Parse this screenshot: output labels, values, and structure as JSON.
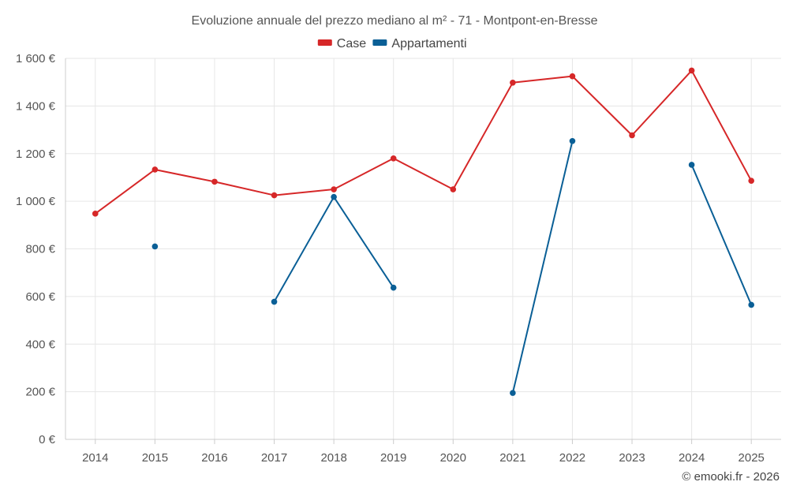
{
  "chart_data": {
    "type": "line",
    "title": "Evoluzione annuale del prezzo mediano al m² - 71 - Montpont-en-Bresse",
    "credit": "© emooki.fr - 2026",
    "ylim": [
      0,
      1600
    ],
    "y_ticks": [
      0,
      200,
      400,
      600,
      800,
      1000,
      1200,
      1400,
      1600
    ],
    "y_tick_labels": [
      "0 €",
      "200 €",
      "400 €",
      "600 €",
      "800 €",
      "1 000 €",
      "1 200 €",
      "1 400 €",
      "1 600 €"
    ],
    "categories": [
      "2014",
      "2015",
      "2016",
      "2017",
      "2018",
      "2019",
      "2020",
      "2021",
      "2022",
      "2023",
      "2024",
      "2025"
    ],
    "legend_position": "top-center",
    "grid": true,
    "series": [
      {
        "name": "Case",
        "color": "#d62728",
        "values": [
          948,
          1133,
          1082,
          1025,
          1050,
          1180,
          1050,
          1498,
          1525,
          1277,
          1549,
          1086
        ]
      },
      {
        "name": "Appartamenti",
        "color": "#0a5f96",
        "values": [
          null,
          810,
          null,
          578,
          1018,
          637,
          null,
          195,
          1253,
          null,
          1153,
          565
        ]
      }
    ]
  }
}
